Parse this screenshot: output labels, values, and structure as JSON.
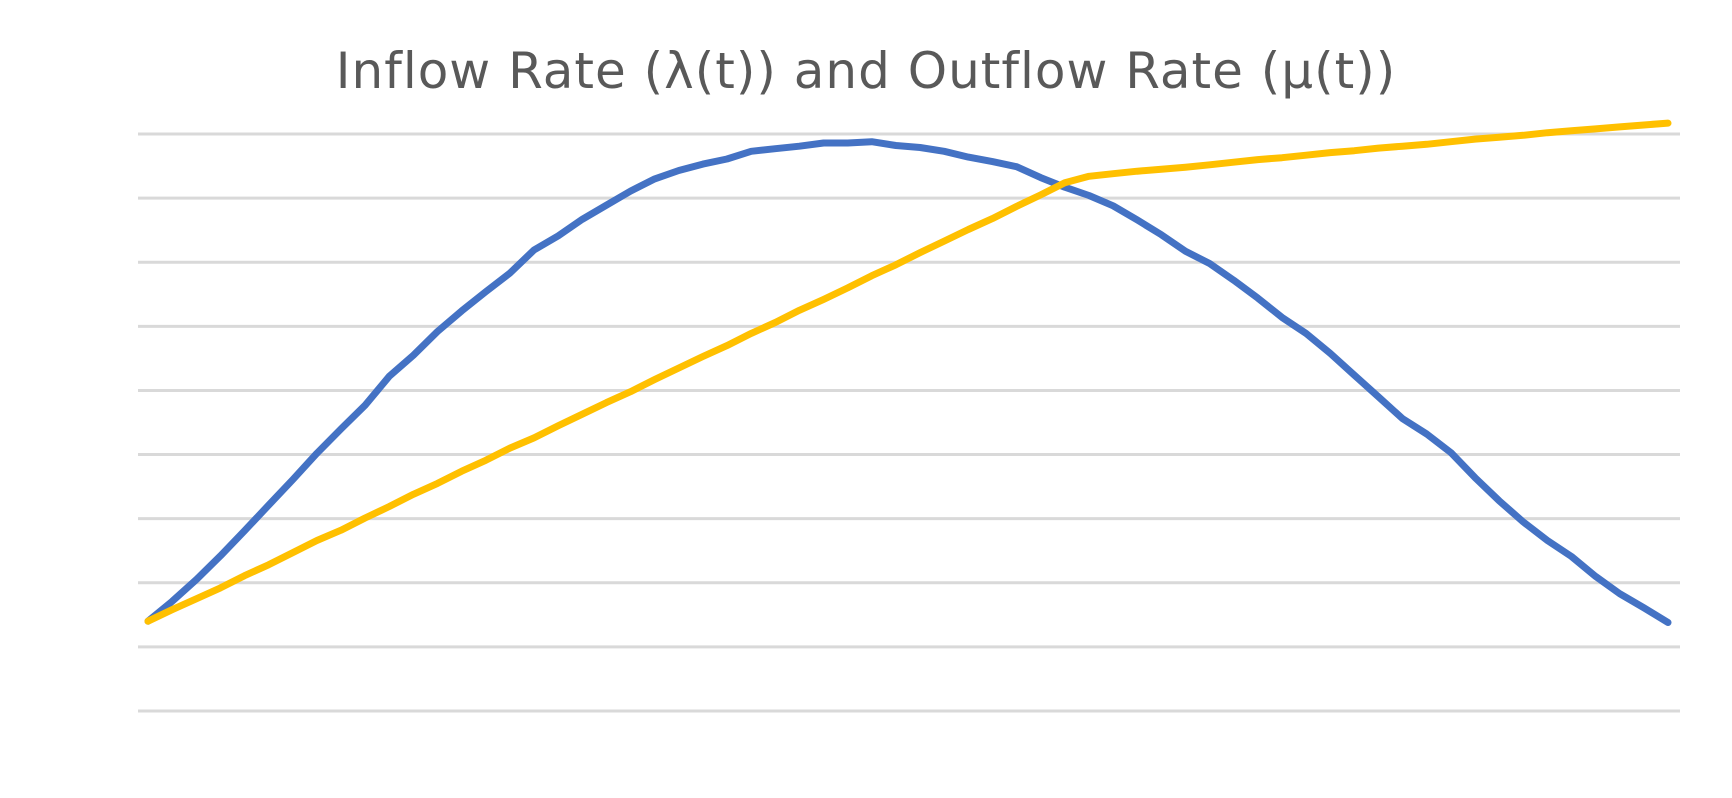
{
  "chart_data": {
    "type": "line",
    "title": "Inflow Rate (λ(t)) and Outflow Rate (μ(t))",
    "xlabel": "",
    "ylabel": "",
    "grid": true,
    "legend": "none",
    "ylim": [
      0,
      9
    ],
    "x": [
      0,
      1,
      2,
      3,
      4,
      5,
      6,
      7,
      8,
      9,
      10,
      11,
      12,
      13,
      14,
      15,
      16,
      17,
      18,
      19,
      20,
      21,
      22,
      23,
      24,
      25,
      26,
      27,
      28,
      29,
      30,
      31,
      32,
      33,
      34,
      35,
      36,
      37,
      38,
      39,
      40,
      41,
      42,
      43,
      44,
      45,
      46,
      47,
      48,
      49,
      50,
      51,
      52,
      53,
      54,
      55,
      56,
      57,
      58,
      59,
      60,
      61,
      62,
      63
    ],
    "series": [
      {
        "color": "#4472C4",
        "values": [
          1.4,
          1.71,
          2.05,
          2.42,
          2.81,
          3.21,
          3.61,
          4.02,
          4.4,
          4.77,
          5.22,
          5.55,
          5.92,
          6.24,
          6.54,
          6.83,
          7.19,
          7.41,
          7.67,
          7.89,
          8.11,
          8.3,
          8.43,
          8.53,
          8.61,
          8.73,
          8.77,
          8.81,
          8.86,
          8.86,
          8.88,
          8.82,
          8.79,
          8.73,
          8.64,
          8.57,
          8.49,
          8.32,
          8.17,
          8.04,
          7.88,
          7.66,
          7.43,
          7.17,
          6.98,
          6.72,
          6.44,
          6.14,
          5.89,
          5.58,
          5.24,
          4.9,
          4.56,
          4.32,
          4.03,
          3.64,
          3.28,
          2.95,
          2.66,
          2.41,
          2.1,
          1.83,
          1.61,
          1.38
        ]
      },
      {
        "color": "#FFC000",
        "values": [
          1.4,
          1.58,
          1.75,
          1.92,
          2.11,
          2.28,
          2.47,
          2.66,
          2.82,
          3.01,
          3.19,
          3.38,
          3.55,
          3.74,
          3.91,
          4.1,
          4.26,
          4.45,
          4.63,
          4.81,
          4.98,
          5.17,
          5.35,
          5.53,
          5.7,
          5.89,
          6.06,
          6.25,
          6.42,
          6.6,
          6.79,
          6.96,
          7.15,
          7.33,
          7.51,
          7.68,
          7.87,
          8.05,
          8.24,
          8.34,
          8.38,
          8.42,
          8.45,
          8.48,
          8.52,
          8.56,
          8.6,
          8.63,
          8.67,
          8.71,
          8.74,
          8.78,
          8.81,
          8.84,
          8.88,
          8.92,
          8.95,
          8.98,
          9.02,
          9.05,
          9.08,
          9.11,
          9.14,
          9.17
        ]
      }
    ]
  }
}
